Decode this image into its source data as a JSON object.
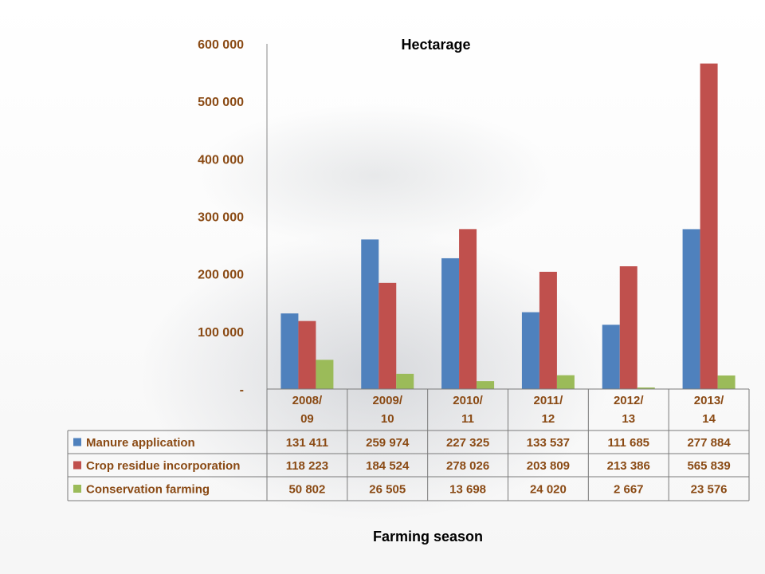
{
  "chart_data": {
    "type": "bar",
    "title": "Hectarage",
    "xlabel": "Farming season",
    "ylabel": "",
    "ylim": [
      0,
      600000
    ],
    "yticks": [
      "-",
      "100 000",
      "200 000",
      "300 000",
      "400 000",
      "500 000",
      "600 000"
    ],
    "ytick_values": [
      0,
      100000,
      200000,
      300000,
      400000,
      500000,
      600000
    ],
    "categories": [
      [
        "2008/",
        "09"
      ],
      [
        "2009/",
        "10"
      ],
      [
        "2010/",
        "11"
      ],
      [
        "2011/",
        "12"
      ],
      [
        "2012/",
        "13"
      ],
      [
        "2013/",
        "14"
      ]
    ],
    "series": [
      {
        "name": "Manure application",
        "color": "#4f81bd",
        "values": [
          131411,
          259974,
          227325,
          133537,
          111685,
          277884
        ],
        "labels": [
          "131 411",
          "259 974",
          "227 325",
          "133 537",
          "111 685",
          "277 884"
        ]
      },
      {
        "name": "Crop residue incorporation",
        "color": "#c0504d",
        "values": [
          118223,
          184524,
          278026,
          203809,
          213386,
          565839
        ],
        "labels": [
          "118 223",
          "184 524",
          "278 026",
          "203 809",
          "213 386",
          "565 839"
        ]
      },
      {
        "name": "Conservation farming",
        "color": "#9bbb59",
        "values": [
          50802,
          26505,
          13698,
          24020,
          2667,
          23576
        ],
        "labels": [
          "50 802",
          "26 505",
          "13 698",
          "24 020",
          "2 667",
          "23 576"
        ]
      }
    ],
    "grid": false,
    "legend": "data-table"
  }
}
